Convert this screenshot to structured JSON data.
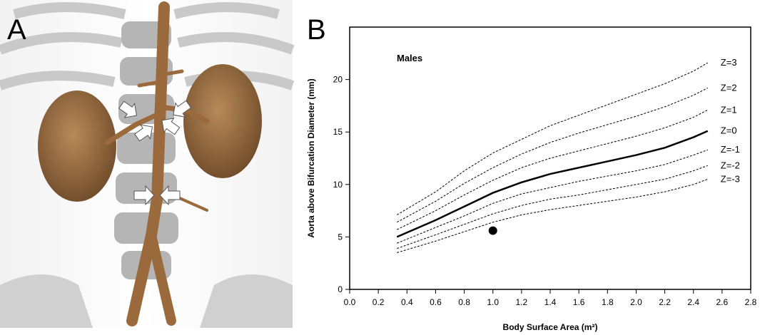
{
  "panel_a": {
    "label": "A"
  },
  "chart_data": {
    "type": "line",
    "panel_label": "B",
    "annotation": "Males",
    "x_label": "Body Surface Area (m²)",
    "y_label": "Aorta above Bifurcation Diameter (mm)",
    "x": [
      0.33,
      0.6,
      0.8,
      1.0,
      1.2,
      1.4,
      1.6,
      1.8,
      2.0,
      2.2,
      2.4,
      2.5
    ],
    "series": [
      {
        "name": "Z=3",
        "color": "#000000",
        "style": "dashed",
        "values": [
          7.1,
          9.3,
          11.3,
          13.0,
          14.3,
          15.6,
          16.6,
          17.6,
          18.6,
          19.6,
          20.8,
          21.6
        ]
      },
      {
        "name": "Z=2",
        "color": "#000000",
        "style": "dashed",
        "values": [
          6.4,
          8.4,
          10.1,
          11.6,
          12.9,
          14.0,
          14.9,
          15.7,
          16.5,
          17.4,
          18.5,
          19.2
        ]
      },
      {
        "name": "Z=1",
        "color": "#000000",
        "style": "dashed",
        "values": [
          5.7,
          7.5,
          9.0,
          10.4,
          11.6,
          12.5,
          13.2,
          13.9,
          14.6,
          15.4,
          16.4,
          17.1
        ]
      },
      {
        "name": "Z=0",
        "color": "#000000",
        "style": "solid",
        "values": [
          5.0,
          6.6,
          7.9,
          9.2,
          10.2,
          11.0,
          11.6,
          12.2,
          12.8,
          13.5,
          14.5,
          15.1
        ]
      },
      {
        "name": "Z=-1",
        "color": "#000000",
        "style": "dashed",
        "values": [
          4.4,
          5.9,
          7.0,
          8.2,
          9.1,
          9.7,
          10.3,
          10.8,
          11.3,
          11.9,
          12.8,
          13.3
        ]
      },
      {
        "name": "Z=-2",
        "color": "#000000",
        "style": "dashed",
        "values": [
          3.9,
          5.2,
          6.2,
          7.2,
          8.0,
          8.6,
          9.0,
          9.5,
          10.0,
          10.5,
          11.3,
          11.8
        ]
      },
      {
        "name": "Z=-3",
        "color": "#000000",
        "style": "dashed",
        "values": [
          3.5,
          4.6,
          5.5,
          6.4,
          7.1,
          7.6,
          8.0,
          8.4,
          8.8,
          9.3,
          10.0,
          10.5
        ]
      }
    ],
    "point": {
      "x": 1.0,
      "y": 5.6,
      "color": "#000000"
    },
    "xlim": [
      0,
      2.8
    ],
    "xticks": [
      {
        "value": 0,
        "label": "0.0"
      },
      {
        "value": 0.2,
        "label": "0.2"
      },
      {
        "value": 0.4,
        "label": "0.4"
      },
      {
        "value": 0.6,
        "label": "0.6"
      },
      {
        "value": 0.8,
        "label": "0.8"
      },
      {
        "value": 1,
        "label": "1.0"
      },
      {
        "value": 1.2,
        "label": "1.2"
      },
      {
        "value": 1.4,
        "label": "1.4"
      },
      {
        "value": 1.6,
        "label": "1.6"
      },
      {
        "value": 1.8,
        "label": "1.8"
      },
      {
        "value": 2,
        "label": "2.0"
      },
      {
        "value": 2.2,
        "label": "2.2"
      },
      {
        "value": 2.4,
        "label": "2.4"
      },
      {
        "value": 2.6,
        "label": "2.6"
      },
      {
        "value": 2.8,
        "label": "2.8"
      }
    ],
    "ylim": [
      0,
      25
    ],
    "yticks": [
      0,
      5,
      10,
      15,
      20
    ],
    "grid": false
  }
}
